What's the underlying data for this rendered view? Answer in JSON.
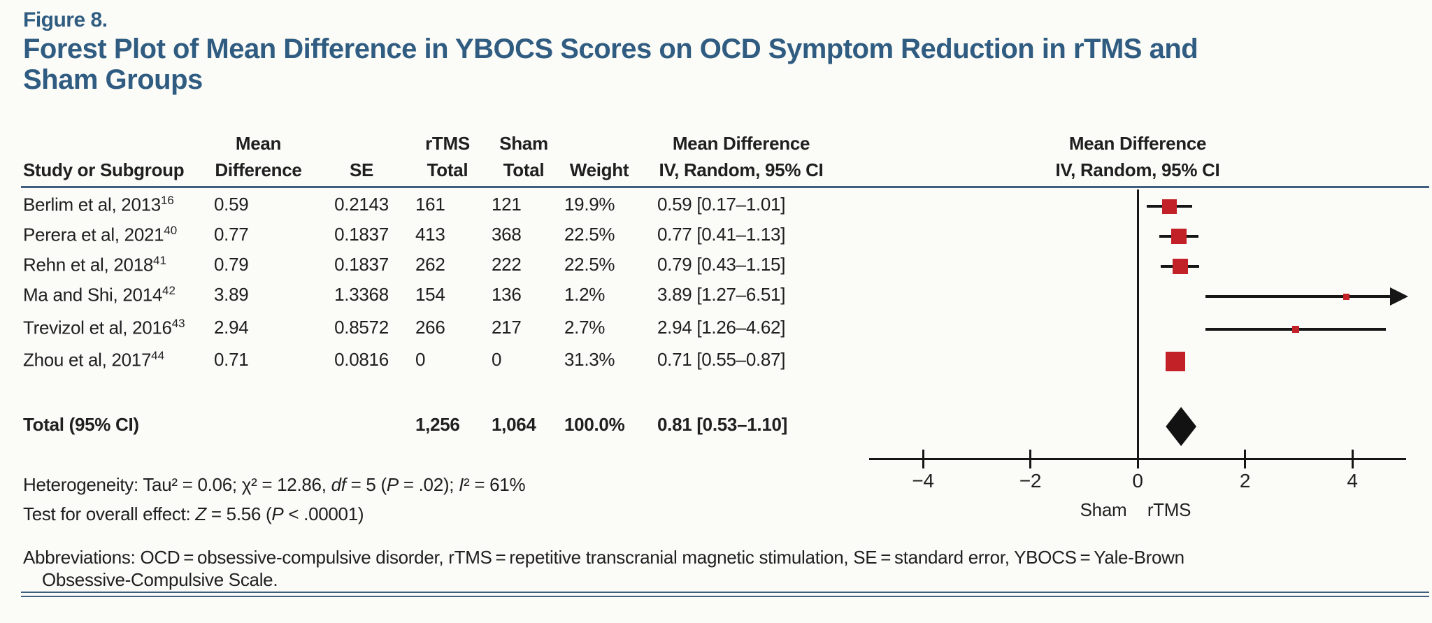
{
  "figure": {
    "label": "Figure 8.",
    "title_lines": [
      "Forest Plot of Mean Difference in YBOCS Scores on OCD Symptom Reduction in rTMS and",
      "Sham Groups"
    ]
  },
  "colors": {
    "accent_blue": "#2f5c80",
    "rule_blue": "#3e5f7e",
    "marker_red": "#c32128",
    "ink": "#1f1f1f",
    "background": "#fbfbf8"
  },
  "table": {
    "columns": [
      {
        "id": "study",
        "line1": "",
        "line2": "Study or Subgroup"
      },
      {
        "id": "mean_diff",
        "line1": "Mean",
        "line2": "Difference"
      },
      {
        "id": "se",
        "line1": "",
        "line2": "SE"
      },
      {
        "id": "rtms_total",
        "line1": "rTMS",
        "line2": "Total"
      },
      {
        "id": "sham_total",
        "line1": "Sham",
        "line2": "Total"
      },
      {
        "id": "weight",
        "line1": "",
        "line2": "Weight"
      },
      {
        "id": "md_ci",
        "line1": "Mean Difference",
        "line2": "IV, Random, 95% CI"
      }
    ],
    "plot_header": {
      "line1": "Mean Difference",
      "line2": "IV, Random, 95% CI"
    }
  },
  "chart_data": {
    "type": "scatter",
    "variant": "forest-plot",
    "effect_measure": "Mean Difference IV, Random, 95% CI",
    "x_axis": {
      "min": -5,
      "max": 5,
      "tick_values": [
        -4,
        -2,
        0,
        2,
        4
      ],
      "tick_labels": [
        "−4",
        "−2",
        "0",
        "2",
        "4"
      ],
      "label_left": "Sham",
      "label_right": "rTMS"
    },
    "studies": [
      {
        "study": "Berlim et al, 2013",
        "ref": "16",
        "mean_difference": "0.59",
        "se": "0.2143",
        "rtms_total": "161",
        "sham_total": "121",
        "weight": "19.9%",
        "ci_text": "0.59 [0.17–1.01]",
        "md": 0.59,
        "lo": 0.17,
        "hi": 1.01,
        "weight_value": 19.9
      },
      {
        "study": "Perera et al, 2021",
        "ref": "40",
        "mean_difference": "0.77",
        "se": "0.1837",
        "rtms_total": "413",
        "sham_total": "368",
        "weight": "22.5%",
        "ci_text": "0.77 [0.41–1.13]",
        "md": 0.77,
        "lo": 0.41,
        "hi": 1.13,
        "weight_value": 22.5
      },
      {
        "study": "Rehn et al, 2018",
        "ref": "41",
        "mean_difference": "0.79",
        "se": "0.1837",
        "rtms_total": "262",
        "sham_total": "222",
        "weight": "22.5%",
        "ci_text": "0.79 [0.43–1.15]",
        "md": 0.79,
        "lo": 0.43,
        "hi": 1.15,
        "weight_value": 22.5
      },
      {
        "study": "Ma and Shi, 2014",
        "ref": "42",
        "mean_difference": "3.89",
        "se": "1.3368",
        "rtms_total": "154",
        "sham_total": "136",
        "weight": "1.2%",
        "ci_text": "3.89 [1.27–6.51]",
        "md": 3.89,
        "lo": 1.27,
        "hi": 6.51,
        "weight_value": 1.2
      },
      {
        "study": "Trevizol et al, 2016",
        "ref": "43",
        "mean_difference": "2.94",
        "se": "0.8572",
        "rtms_total": "266",
        "sham_total": "217",
        "weight": "2.7%",
        "ci_text": "2.94 [1.26–4.62]",
        "md": 2.94,
        "lo": 1.26,
        "hi": 4.62,
        "weight_value": 2.7
      },
      {
        "study": "Zhou et al, 2017",
        "ref": "44",
        "mean_difference": "0.71",
        "se": "0.0816",
        "rtms_total": "0",
        "sham_total": "0",
        "weight": "31.3%",
        "ci_text": "0.71 [0.55–0.87]",
        "md": 0.71,
        "lo": 0.55,
        "hi": 0.87,
        "weight_value": 31.3
      }
    ],
    "total": {
      "label": "Total (95% CI)",
      "rtms_total": "1,256",
      "sham_total": "1,064",
      "weight": "100.0%",
      "ci_text": "0.81 [0.53–1.10]",
      "md": 0.81,
      "lo": 0.53,
      "hi": 1.1
    }
  },
  "footnotes": {
    "heterogeneity_parts": [
      {
        "t": "Heterogeneity: Tau² = 0.06; χ² = 12.86, ",
        "i": false
      },
      {
        "t": "df",
        "i": true
      },
      {
        "t": " = 5 (",
        "i": false
      },
      {
        "t": "P",
        "i": true
      },
      {
        "t": " = .02); ",
        "i": false
      },
      {
        "t": "I",
        "i": true
      },
      {
        "t": "² = 61%",
        "i": false
      }
    ],
    "overall_effect_parts": [
      {
        "t": "Test for overall effect: ",
        "i": false
      },
      {
        "t": "Z",
        "i": true
      },
      {
        "t": " = 5.56 (",
        "i": false
      },
      {
        "t": "P",
        "i": true
      },
      {
        "t": " < .00001)",
        "i": false
      }
    ],
    "abbreviations_line1": "Abbreviations: OCD = obsessive-compulsive disorder, rTMS = repetitive transcranial magnetic stimulation, SE = standard error, YBOCS = Yale-Brown",
    "abbreviations_line2": "Obsessive-Compulsive Scale."
  }
}
